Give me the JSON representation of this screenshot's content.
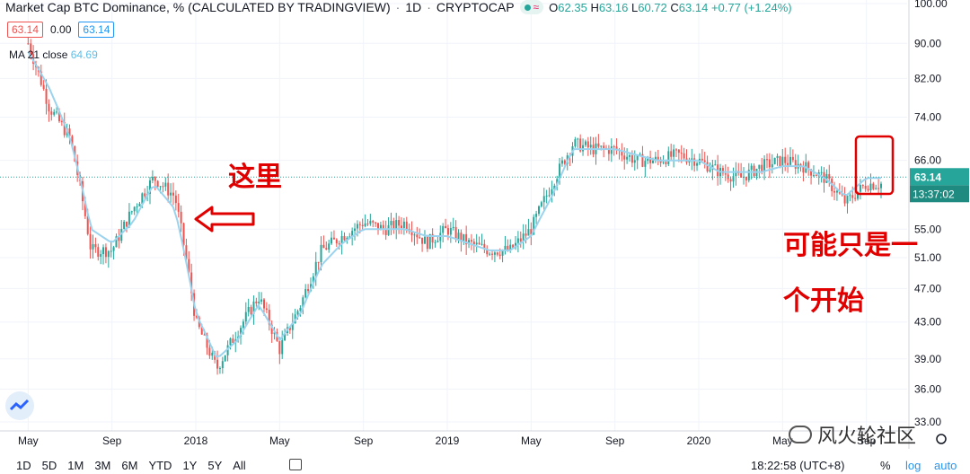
{
  "header": {
    "title": "Market Cap BTC Dominance, % (CALCULATED BY TRADINGVIEW)",
    "interval": "1D",
    "exchange": "CRYPTOCAP",
    "open_label": "O",
    "open": "62.35",
    "high_label": "H",
    "high": "63.16",
    "low_label": "L",
    "low": "60.72",
    "close_label": "C",
    "close": "63.14",
    "change": "+0.77 (+1.24%)"
  },
  "quote": {
    "sell": "63.14",
    "spread": "0.00",
    "buy": "63.14"
  },
  "indicator": {
    "label": "MA 21 close",
    "value": "64.69"
  },
  "price_tag": {
    "value": "63.14",
    "countdown": "13:37:02"
  },
  "annotations": {
    "arrow_text": "这里",
    "note_line1": "可能只是一",
    "note_line2": "个开始"
  },
  "watermark": {
    "text": "风火轮社区"
  },
  "bottom_bar": {
    "ranges": [
      "1D",
      "5D",
      "1M",
      "3M",
      "6M",
      "YTD",
      "1Y",
      "5Y",
      "All"
    ],
    "clock": "18:22:58 (UTC+8)",
    "percent": "%",
    "log": "log",
    "auto": "auto"
  },
  "colors": {
    "up": "#26a69a",
    "down": "#ef5350",
    "ma": "#9bd3ee",
    "annotation": "#e00000"
  },
  "chart_data": {
    "type": "candlestick",
    "y_ticks": [
      "100.00",
      "90.00",
      "82.00",
      "74.00",
      "66.00",
      "55.00",
      "51.00",
      "47.00",
      "43.00",
      "39.00",
      "36.00",
      "33.00"
    ],
    "x_ticks": [
      "May",
      "Sep",
      "2018",
      "May",
      "Sep",
      "2019",
      "May",
      "Sep",
      "2020",
      "May",
      "Sep"
    ],
    "ylim": [
      33,
      100
    ],
    "y_scale": "log",
    "last_price": 63.14,
    "x": [
      "2017-05",
      "2017-06",
      "2017-07",
      "2017-08",
      "2017-09",
      "2017-10",
      "2017-11",
      "2017-12",
      "2018-01",
      "2018-02",
      "2018-03",
      "2018-04",
      "2018-05",
      "2018-06",
      "2018-07",
      "2018-08",
      "2018-09",
      "2018-10",
      "2018-11",
      "2018-12",
      "2019-01",
      "2019-02",
      "2019-03",
      "2019-04",
      "2019-05",
      "2019-06",
      "2019-07",
      "2019-08",
      "2019-09",
      "2019-10",
      "2019-11",
      "2019-12",
      "2020-01",
      "2020-02",
      "2020-03",
      "2020-04",
      "2020-05",
      "2020-06",
      "2020-07",
      "2020-08",
      "2020-09"
    ],
    "series": [
      {
        "name": "",
        "values": [
          90,
          76,
          70,
          52,
          52,
          58,
          63,
          60,
          43,
          38,
          42,
          46,
          40,
          45,
          52,
          54,
          56,
          55,
          56,
          53,
          55,
          53,
          52,
          52,
          55,
          62,
          69,
          68,
          68,
          66,
          66,
          67,
          66,
          64,
          63,
          65,
          66,
          65,
          63,
          59,
          62
        ]
      },
      {
        "name": "MA 21 close",
        "values": [
          88,
          80,
          70,
          55,
          53,
          56,
          62,
          58,
          44,
          39,
          41,
          45,
          41,
          44,
          50,
          53,
          55,
          55,
          55,
          54,
          54,
          53,
          52,
          52,
          54,
          60,
          68,
          68,
          68,
          67,
          66,
          66,
          66,
          64,
          64,
          64,
          65,
          65,
          63,
          60,
          63
        ]
      }
    ]
  }
}
